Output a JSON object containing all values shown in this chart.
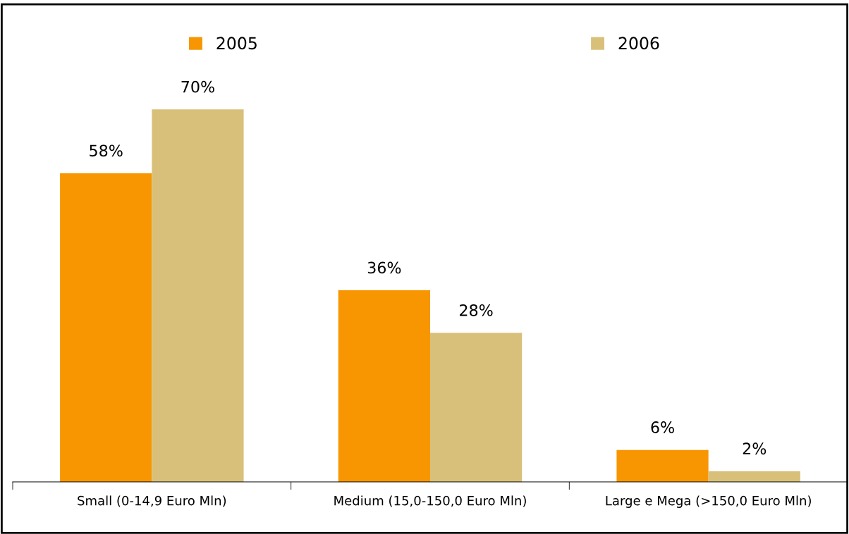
{
  "chart_data": {
    "type": "bar",
    "categories": [
      "Small (0-14,9 Euro Mln)",
      "Medium (15,0-150,0 Euro Mln)",
      "Large e Mega (>150,0 Euro Mln)"
    ],
    "series": [
      {
        "name": "2005",
        "color": "#f79600",
        "values": [
          58,
          36,
          6
        ],
        "value_labels": [
          "58%",
          "36%",
          "6%"
        ]
      },
      {
        "name": "2006",
        "color": "#d9c07a",
        "values": [
          70,
          28,
          2
        ],
        "value_labels": [
          "70%",
          "28%",
          "2%"
        ]
      }
    ],
    "legend": "top",
    "grid": false
  }
}
